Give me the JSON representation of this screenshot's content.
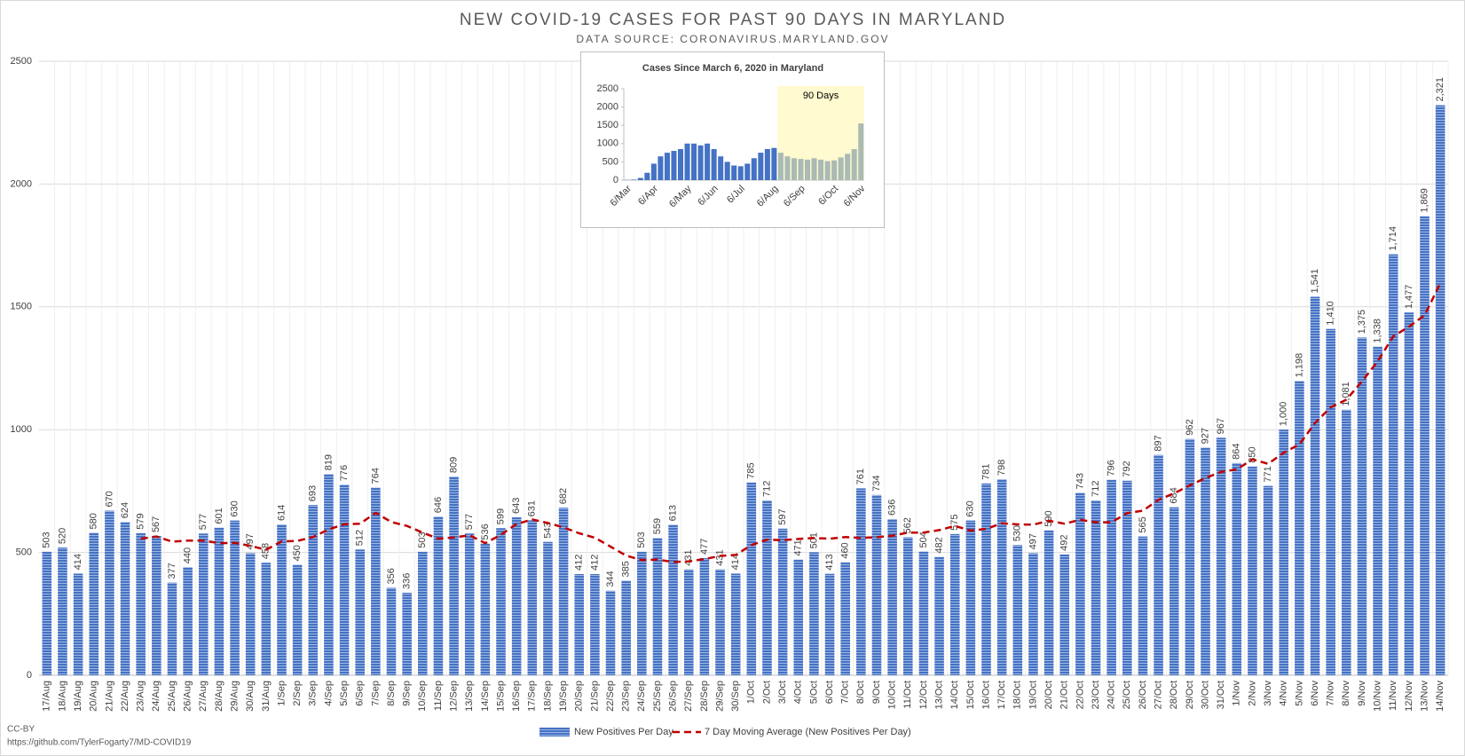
{
  "chart_data": [
    {
      "type": "bar",
      "title": "NEW COVID-19 CASES FOR PAST 90 DAYS IN MARYLAND",
      "subtitle": "DATA SOURCE: CORONAVIRUS.MARYLAND.GOV",
      "categories": [
        "17/Aug",
        "18/Aug",
        "19/Aug",
        "20/Aug",
        "21/Aug",
        "22/Aug",
        "23/Aug",
        "24/Aug",
        "25/Aug",
        "26/Aug",
        "27/Aug",
        "28/Aug",
        "29/Aug",
        "30/Aug",
        "31/Aug",
        "1/Sep",
        "2/Sep",
        "3/Sep",
        "4/Sep",
        "5/Sep",
        "6/Sep",
        "7/Sep",
        "8/Sep",
        "9/Sep",
        "10/Sep",
        "11/Sep",
        "12/Sep",
        "13/Sep",
        "14/Sep",
        "15/Sep",
        "16/Sep",
        "17/Sep",
        "18/Sep",
        "19/Sep",
        "20/Sep",
        "21/Sep",
        "22/Sep",
        "23/Sep",
        "24/Sep",
        "25/Sep",
        "26/Sep",
        "27/Sep",
        "28/Sep",
        "29/Sep",
        "30/Sep",
        "1/Oct",
        "2/Oct",
        "3/Oct",
        "4/Oct",
        "5/Oct",
        "6/Oct",
        "7/Oct",
        "8/Oct",
        "9/Oct",
        "10/Oct",
        "11/Oct",
        "12/Oct",
        "13/Oct",
        "14/Oct",
        "15/Oct",
        "16/Oct",
        "17/Oct",
        "18/Oct",
        "19/Oct",
        "20/Oct",
        "21/Oct",
        "22/Oct",
        "23/Oct",
        "24/Oct",
        "25/Oct",
        "26/Oct",
        "27/Oct",
        "28/Oct",
        "29/Oct",
        "30/Oct",
        "31/Oct",
        "1/Nov",
        "2/Nov",
        "3/Nov",
        "4/Nov",
        "5/Nov",
        "6/Nov",
        "7/Nov",
        "8/Nov",
        "9/Nov",
        "10/Nov",
        "11/Nov",
        "12/Nov",
        "13/Nov",
        "14/Nov"
      ],
      "series": [
        {
          "name": "New Positives Per Day",
          "color": "#4472c4",
          "values": [
            503,
            520,
            414,
            580,
            670,
            624,
            579,
            567,
            377,
            440,
            577,
            601,
            630,
            497,
            458,
            614,
            450,
            693,
            819,
            776,
            512,
            764,
            356,
            336,
            503,
            646,
            809,
            577,
            536,
            599,
            643,
            631,
            543,
            682,
            412,
            412,
            344,
            385,
            503,
            559,
            613,
            431,
            477,
            431,
            414,
            785,
            712,
            597,
            471,
            501,
            413,
            460,
            761,
            734,
            636,
            562,
            504,
            482,
            575,
            630,
            781,
            798,
            530,
            497,
            590,
            492,
            743,
            712,
            796,
            792,
            565,
            897,
            684,
            962,
            927,
            967,
            864,
            850,
            771,
            1000,
            1198,
            1541,
            1410,
            1081,
            1375,
            1338,
            1714,
            1477,
            1869,
            2321
          ],
          "value_labels": [
            "503",
            "520",
            "414",
            "580",
            "670",
            "624",
            "579",
            "567",
            "377",
            "440",
            "577",
            "601",
            "630",
            "497",
            "458",
            "614",
            "450",
            "693",
            "819",
            "776",
            "512",
            "764",
            "356",
            "336",
            "503",
            "646",
            "809",
            "577",
            "536",
            "599",
            "643",
            "631",
            "543",
            "682",
            "412",
            "412",
            "344",
            "385",
            "503",
            "559",
            "613",
            "431",
            "477",
            "431",
            "414",
            "785",
            "712",
            "597",
            "471",
            "501",
            "413",
            "460",
            "761",
            "734",
            "636",
            "562",
            "504",
            "482",
            "575",
            "630",
            "781",
            "798",
            "530",
            "497",
            "590",
            "492",
            "743",
            "712",
            "796",
            "792",
            "565",
            "897",
            "684",
            "962",
            "927",
            "967",
            "864",
            "850",
            "771",
            "1,000",
            "1,198",
            "1,541",
            "1,410",
            "1,081",
            "1,375",
            "1,338",
            "1,714",
            "1,477",
            "1,869",
            "2,321"
          ]
        },
        {
          "name": "7 Day Moving Average (New Positives Per Day)",
          "color": "#c00000",
          "type": "line",
          "values": [
            null,
            null,
            null,
            null,
            null,
            null,
            556,
            565,
            544,
            548,
            548,
            538,
            539,
            527,
            511,
            545,
            547,
            563,
            594,
            615,
            617,
            661,
            624,
            608,
            581,
            556,
            561,
            570,
            538,
            572,
            616,
            634,
            620,
            602,
            578,
            560,
            524,
            487,
            469,
            471,
            461,
            464,
            473,
            486,
            490,
            530,
            552,
            550,
            555,
            559,
            556,
            563,
            559,
            562,
            568,
            581,
            581,
            591,
            608,
            589,
            596,
            619,
            614,
            613,
            629,
            617,
            633,
            623,
            623,
            660,
            670,
            714,
            741,
            773,
            803,
            828,
            838,
            879,
            861,
            906,
            940,
            1027,
            1091,
            1122,
            1197,
            1278,
            1380,
            1419,
            1466,
            1596
          ]
        }
      ],
      "ylim": [
        0,
        2500
      ],
      "yticks": [
        0,
        500,
        1000,
        1500,
        2000,
        2500
      ],
      "grid": true,
      "legend": "bottom"
    },
    {
      "type": "bar",
      "title": "Cases Since March 6, 2020 in Maryland",
      "categories": [
        "6/Mar",
        null,
        null,
        null,
        "6/Apr",
        null,
        null,
        null,
        null,
        "6/May",
        null,
        null,
        null,
        "6/Jun",
        null,
        null,
        null,
        "6/Jul",
        null,
        null,
        null,
        null,
        "6/Aug",
        null,
        null,
        null,
        "6/Sep",
        null,
        null,
        null,
        null,
        "6/Oct",
        null,
        null,
        null,
        "6/Nov"
      ],
      "values": [
        5,
        15,
        60,
        200,
        450,
        650,
        750,
        800,
        850,
        1000,
        1000,
        950,
        1000,
        850,
        650,
        500,
        400,
        380,
        450,
        600,
        750,
        850,
        880,
        750,
        650,
        600,
        580,
        560,
        600,
        560,
        520,
        540,
        620,
        720,
        850,
        1550
      ],
      "color": "#4472c4",
      "ylim": [
        0,
        2500
      ],
      "yticks": [
        0,
        500,
        1000,
        1500,
        2000,
        2500
      ],
      "annotation": "90 Days",
      "highlight": [
        23,
        35
      ],
      "highlight_color": "#fff6a8"
    }
  ],
  "footer": {
    "license": "CC-BY",
    "source": "https://github.com/TylerFogarty7/MD-COVID19"
  }
}
